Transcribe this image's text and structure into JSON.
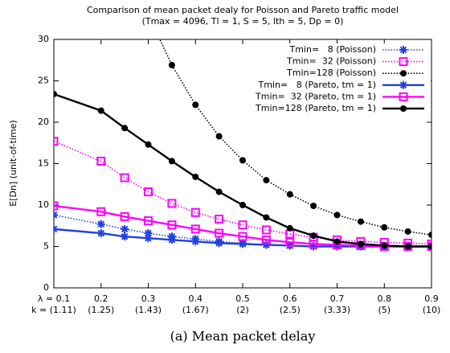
{
  "chart_data": {
    "type": "line",
    "title": "Comparison of mean packet dealy for Poisson and Pareto traffic model",
    "subtitle": "(Tmax = 4096, Tl = 1, S = 5, lth = 5, Dp = 0)",
    "y_label": "E[Dn] (unit-of-time)",
    "x": [
      0.1,
      0.2,
      0.25,
      0.3,
      0.35,
      0.4,
      0.45,
      0.5,
      0.55,
      0.6,
      0.65,
      0.7,
      0.75,
      0.8,
      0.85,
      0.9
    ],
    "xlim": [
      0.1,
      0.9
    ],
    "xticks": [
      {
        "value": 0.1,
        "label": "λ = 0.1"
      },
      0.2,
      0.3,
      0.4,
      0.5,
      0.6,
      0.7,
      0.8,
      0.9
    ],
    "xtick_sublabels": [
      "k = (1.11)",
      "(1.25)",
      "(1.43)",
      "(1.67)",
      "(2)",
      "(2.5)",
      "(3.33)",
      "(5)",
      "(10)"
    ],
    "ylim": [
      0,
      30
    ],
    "yticks": [
      0,
      5,
      10,
      15,
      20,
      25,
      30
    ],
    "grid": false,
    "legend": "top-right",
    "series": [
      {
        "name": "Tmin=   8 (Poisson)",
        "color": "#2040e0",
        "marker": "star",
        "dash": "dotted",
        "values": [
          8.8,
          7.7,
          7.1,
          6.6,
          6.2,
          5.9,
          5.6,
          5.4,
          5.2,
          5.1,
          5.05,
          5.0,
          5.0,
          5.0,
          5.0,
          5.0
        ]
      },
      {
        "name": "Tmin=  32 (Poisson)",
        "color": "#ff00ff",
        "marker": "square",
        "dash": "dotted",
        "values": [
          17.7,
          15.3,
          13.3,
          11.6,
          10.2,
          9.1,
          8.3,
          7.6,
          7.0,
          6.5,
          6.1,
          5.8,
          5.6,
          5.5,
          5.4,
          5.3
        ]
      },
      {
        "name": "Tmin=128 (Poisson)",
        "color": "#000000",
        "marker": "circle",
        "dash": "dotted",
        "values": [
          null,
          null,
          null,
          33.0,
          26.9,
          22.1,
          18.3,
          15.4,
          13.0,
          11.3,
          9.9,
          8.8,
          8.0,
          7.3,
          6.8,
          6.4
        ]
      },
      {
        "name": "Tmin=   8 (Pareto, tm = 1)",
        "color": "#2040e0",
        "marker": "star",
        "dash": "solid",
        "values": [
          7.1,
          6.6,
          6.2,
          6.0,
          5.8,
          5.6,
          5.4,
          5.3,
          5.2,
          5.1,
          5.0,
          5.0,
          5.0,
          5.0,
          5.0,
          5.0
        ]
      },
      {
        "name": "Tmin=  32 (Pareto, tm = 1)",
        "color": "#ff00ff",
        "marker": "square",
        "dash": "solid",
        "values": [
          9.9,
          9.2,
          8.6,
          8.1,
          7.6,
          7.1,
          6.6,
          6.2,
          5.8,
          5.5,
          5.3,
          5.2,
          5.1,
          5.0,
          5.0,
          5.0
        ]
      },
      {
        "name": "Tmin=128 (Pareto, tm = 1)",
        "color": "#000000",
        "marker": "circle",
        "dash": "solid",
        "values": [
          23.4,
          21.4,
          19.3,
          17.3,
          15.3,
          13.4,
          11.6,
          10.0,
          8.5,
          7.2,
          6.3,
          5.6,
          5.3,
          5.1,
          5.0,
          5.0
        ]
      }
    ]
  },
  "caption": "(a) Mean packet delay"
}
